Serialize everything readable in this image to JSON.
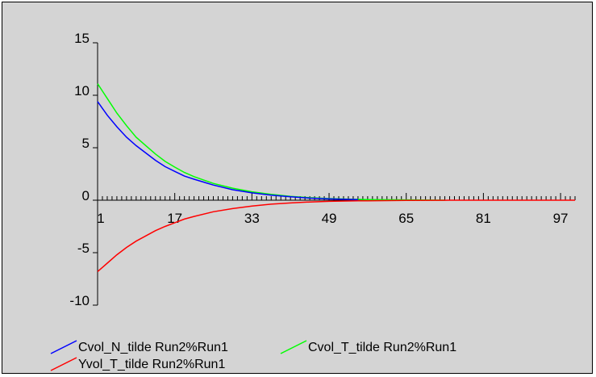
{
  "chart_data": {
    "type": "line",
    "title": "",
    "xlabel": "",
    "ylabel": "",
    "xlim": [
      1,
      100
    ],
    "ylim": [
      -10,
      15
    ],
    "y_ticks": [
      15,
      10,
      5,
      0,
      -5,
      -10
    ],
    "x_ticks": [
      1,
      17,
      33,
      49,
      65,
      81,
      97
    ],
    "grid": false,
    "legend_position": "bottom",
    "background": "#d4d4d4",
    "x": [
      1,
      3,
      5,
      7,
      9,
      11,
      13,
      15,
      17,
      19,
      21,
      25,
      29,
      33,
      37,
      41,
      45,
      49,
      55,
      57,
      65,
      73,
      74,
      81,
      89,
      97,
      100
    ],
    "series": [
      {
        "name": "Cvol_N_tilde Run2%Run1",
        "color": "#0000ff",
        "values": [
          9.4,
          8.1,
          7.0,
          6.0,
          5.2,
          4.5,
          3.8,
          3.2,
          2.75,
          2.3,
          2.0,
          1.45,
          1.0,
          0.7,
          0.48,
          0.32,
          0.2,
          0.12,
          0.05,
          null,
          null,
          null,
          null,
          null,
          null,
          null,
          null
        ]
      },
      {
        "name": "Cvol_T_tilde Run2%Run1",
        "color": "#00ff00",
        "values": [
          11.1,
          9.7,
          8.3,
          7.1,
          6.0,
          5.2,
          4.4,
          3.7,
          3.15,
          2.65,
          2.25,
          1.6,
          1.15,
          0.8,
          0.55,
          0.37,
          0.24,
          0.15,
          0.08,
          0.06,
          0.03,
          0.0,
          null,
          null,
          null,
          null,
          null
        ]
      },
      {
        "name": "Yvol_T_tilde Run2%Run1",
        "color": "#ff0000",
        "values": [
          -6.8,
          -6.0,
          -5.2,
          -4.5,
          -3.9,
          -3.4,
          -2.9,
          -2.5,
          -2.15,
          -1.8,
          -1.55,
          -1.1,
          -0.8,
          -0.55,
          -0.38,
          -0.26,
          -0.17,
          -0.11,
          -0.06,
          -0.05,
          -0.02,
          -0.01,
          0.0,
          0.0,
          0.0,
          0.0,
          0.0
        ]
      }
    ]
  }
}
